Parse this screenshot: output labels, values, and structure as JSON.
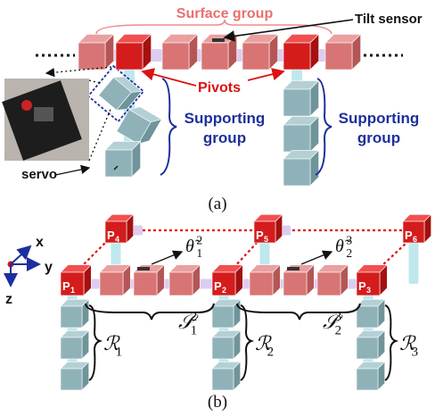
{
  "panel_a": {
    "caption": "(a)",
    "surface_group": "Surface group",
    "tilt_sensor": "Tilt sensor",
    "pivots": "Pivots",
    "supporting_group_left": [
      "Supporting",
      "group"
    ],
    "supporting_group_right": [
      "Supporting",
      "group"
    ],
    "servo": "servo"
  },
  "panel_b": {
    "caption": "(b)",
    "axes": {
      "x": "x",
      "y": "y",
      "z": "z"
    },
    "pivots": [
      {
        "base": "P",
        "sub": "1"
      },
      {
        "base": "P",
        "sub": "2"
      },
      {
        "base": "P",
        "sub": "3"
      },
      {
        "base": "P",
        "sub": "4"
      },
      {
        "base": "P",
        "sub": "5"
      },
      {
        "base": "P",
        "sub": "6"
      }
    ],
    "tilt_angles": [
      {
        "base": "θ̃",
        "sub": "1",
        "sup": "2"
      },
      {
        "base": "θ̃",
        "sub": "2",
        "sup": "3"
      }
    ],
    "surface_groups": [
      {
        "base": "𝒮",
        "sub": "1",
        "sup": "2"
      },
      {
        "base": "𝒮",
        "sub": "2",
        "sup": "3"
      }
    ],
    "supporting_groups": [
      {
        "base": "ℛ",
        "sub": "1"
      },
      {
        "base": "ℛ",
        "sub": "2"
      },
      {
        "base": "ℛ",
        "sub": "3"
      }
    ]
  }
}
